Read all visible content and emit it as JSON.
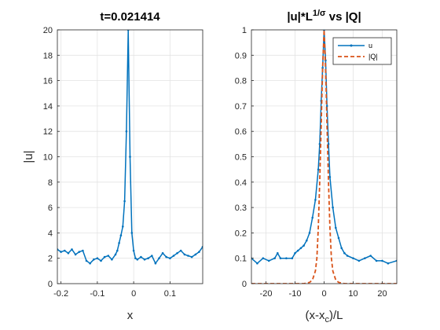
{
  "chart_data": [
    {
      "type": "line",
      "title": "t=0.021414",
      "xlabel": "x",
      "ylabel": "|u|",
      "xlim": [
        -0.21,
        0.19
      ],
      "ylim": [
        0,
        20
      ],
      "xticks": [
        -0.2,
        -0.1,
        0,
        0.1
      ],
      "xtick_labels": [
        "-0.2",
        "-0.1",
        "0",
        "0.1"
      ],
      "yticks": [
        0,
        2,
        4,
        6,
        8,
        10,
        12,
        14,
        16,
        18,
        20
      ],
      "ytick_labels": [
        "0",
        "2",
        "4",
        "6",
        "8",
        "10",
        "12",
        "14",
        "16",
        "18",
        "20"
      ],
      "grid": true,
      "series": [
        {
          "color": "#0072BD",
          "marker": "dot",
          "x": [
            -0.21,
            -0.2,
            -0.19,
            -0.18,
            -0.17,
            -0.16,
            -0.15,
            -0.14,
            -0.13,
            -0.12,
            -0.11,
            -0.1,
            -0.09,
            -0.08,
            -0.07,
            -0.06,
            -0.05,
            -0.045,
            -0.04,
            -0.035,
            -0.03,
            -0.025,
            -0.02,
            -0.015,
            -0.01,
            -0.005,
            0,
            0.005,
            0.01,
            0.02,
            0.03,
            0.04,
            0.05,
            0.06,
            0.07,
            0.08,
            0.09,
            0.1,
            0.11,
            0.12,
            0.13,
            0.14,
            0.15,
            0.16,
            0.17,
            0.18,
            0.19
          ],
          "y": [
            2.7,
            2.5,
            2.6,
            2.4,
            2.7,
            2.3,
            2.5,
            2.6,
            1.8,
            1.6,
            1.9,
            2.0,
            1.8,
            2.1,
            2.2,
            1.9,
            2.3,
            2.6,
            3.2,
            3.8,
            4.5,
            6.5,
            12.0,
            20.0,
            10.0,
            4.0,
            2.6,
            2.0,
            1.9,
            2.1,
            1.9,
            2.0,
            2.2,
            1.6,
            2.0,
            2.4,
            2.1,
            2.0,
            2.2,
            2.4,
            2.6,
            2.3,
            2.2,
            2.1,
            2.3,
            2.5,
            2.9
          ]
        }
      ]
    },
    {
      "type": "line",
      "title": "|u|*L",
      "title_sup": "1/σ",
      "title_suffix": " vs |Q|",
      "xlabel": "(x-x",
      "xlabel_sub": "c",
      "xlabel_suffix": ")/L",
      "ylabel": "",
      "xlim": [
        -25,
        25
      ],
      "ylim": [
        0,
        1
      ],
      "xticks": [
        -20,
        -10,
        0,
        10,
        20
      ],
      "xtick_labels": [
        "-20",
        "-10",
        "0",
        "10",
        "20"
      ],
      "yticks": [
        0,
        0.1,
        0.2,
        0.3,
        0.4,
        0.5,
        0.6,
        0.7,
        0.8,
        0.9,
        1
      ],
      "ytick_labels": [
        "0",
        "0.1",
        "0.2",
        "0.3",
        "0.4",
        "0.5",
        "0.6",
        "0.7",
        "0.8",
        "0.9",
        "1"
      ],
      "grid": true,
      "legend": {
        "position": "top-right",
        "entries": [
          "u",
          "|Q|"
        ]
      },
      "series": [
        {
          "name": "u",
          "color": "#0072BD",
          "style": "solid",
          "marker": "dot",
          "x": [
            -25,
            -23,
            -21,
            -19,
            -17,
            -16,
            -15,
            -13,
            -11,
            -10,
            -9,
            -8,
            -7,
            -6,
            -5,
            -4,
            -3,
            -2,
            -1.5,
            -1,
            -0.5,
            0,
            0.5,
            1,
            1.5,
            2,
            3,
            4,
            5,
            6,
            7,
            8,
            10,
            12,
            14,
            16,
            18,
            20,
            22,
            25
          ],
          "y": [
            0.1,
            0.08,
            0.1,
            0.09,
            0.1,
            0.12,
            0.1,
            0.1,
            0.1,
            0.12,
            0.13,
            0.14,
            0.15,
            0.17,
            0.2,
            0.26,
            0.33,
            0.45,
            0.55,
            0.72,
            0.85,
            1.0,
            0.88,
            0.7,
            0.55,
            0.42,
            0.3,
            0.22,
            0.18,
            0.14,
            0.12,
            0.11,
            0.1,
            0.09,
            0.1,
            0.11,
            0.09,
            0.09,
            0.08,
            0.09
          ]
        },
        {
          "name": "|Q|",
          "color": "#D95319",
          "style": "dashed",
          "x": [
            -25,
            -20,
            -15,
            -10,
            -7,
            -5,
            -4,
            -3,
            -2.5,
            -2,
            -1.5,
            -1,
            -0.5,
            0,
            0.5,
            1,
            1.5,
            2,
            2.5,
            3,
            4,
            5,
            7,
            10,
            15,
            20,
            25
          ],
          "y": [
            0,
            0,
            0,
            0,
            0,
            0.005,
            0.015,
            0.05,
            0.1,
            0.22,
            0.4,
            0.62,
            0.85,
            1.0,
            0.85,
            0.62,
            0.4,
            0.22,
            0.1,
            0.05,
            0.015,
            0.005,
            0,
            0,
            0,
            0,
            0
          ]
        }
      ]
    }
  ]
}
